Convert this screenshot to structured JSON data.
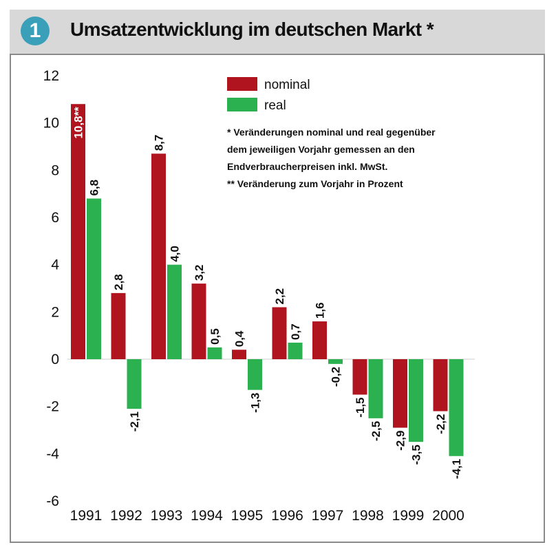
{
  "header": {
    "badge": "1",
    "title": "Umsatzentwicklung im deutschen Markt *"
  },
  "legend": {
    "nominal": "nominal",
    "real": "real"
  },
  "notes": {
    "line1": "* Veränderungen nominal und real gegenüber",
    "line2": "dem jeweiligen Vorjahr gemessen an den",
    "line3": "Endverbraucherpreisen inkl. MwSt.",
    "line4": "** Veränderung zum Vorjahr in Prozent"
  },
  "colors": {
    "nominal": "#b0141e",
    "real": "#2bb14f"
  },
  "chart_data": {
    "type": "bar",
    "title": "Umsatzentwicklung im deutschen Markt *",
    "categories": [
      "1991",
      "1992",
      "1993",
      "1994",
      "1995",
      "1996",
      "1997",
      "1998",
      "1999",
      "2000"
    ],
    "series": [
      {
        "name": "nominal",
        "values": [
          10.8,
          2.8,
          8.7,
          3.2,
          0.4,
          2.2,
          1.6,
          -1.5,
          -2.9,
          -2.2
        ],
        "labels": [
          "10,8**",
          "2,8",
          "8,7",
          "3,2",
          "0,4",
          "2,2",
          "1,6",
          "-1,5",
          "-2,9",
          "-2,2"
        ]
      },
      {
        "name": "real",
        "values": [
          6.8,
          -2.1,
          4.0,
          0.5,
          -1.3,
          0.7,
          -0.2,
          -2.5,
          -3.5,
          -4.1
        ],
        "labels": [
          "6,8",
          "-2,1",
          "4,0",
          "0,5",
          "-1,3",
          "0,7",
          "-0,2",
          "-2,5",
          "-3,5",
          "-4,1"
        ]
      }
    ],
    "yticks": [
      "12",
      "10",
      "8",
      "6",
      "4",
      "2",
      "0",
      "-2",
      "-4",
      "-6"
    ],
    "ylim": [
      -6,
      12
    ],
    "grid": false,
    "legend_position": "top-center"
  }
}
